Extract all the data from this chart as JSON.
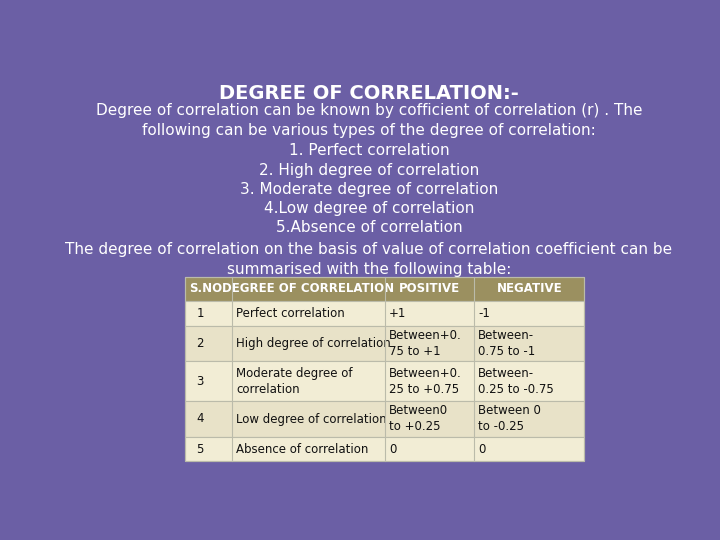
{
  "title": "DEGREE OF CORRELATION:-",
  "intro_lines": [
    "Degree of correlation can be known by cofficient of correlation (r) . The",
    "following can be various types of the degree of correlation:",
    "1. Perfect correlation",
    "2. High degree of correlation",
    "3. Moderate degree of correlation",
    "4.Low degree of correlation",
    "5.Absence of correlation",
    "The degree of correlation on the basis of value of correlation coefficient can be",
    "summarised with the following table:"
  ],
  "bg_color": "#6B5FA5",
  "header_bg": "#9B9060",
  "header_text_color": "#FFFFFF",
  "row_bg_light": "#F2EDD5",
  "row_bg_dark": "#E8E2C8",
  "row_text_color": "#111111",
  "title_color": "#FFFFFF",
  "intro_color": "#FFFFFF",
  "table_headers": [
    "S.NO.",
    "DEGREE OF CORRELATION",
    "POSITIVE",
    "NEGATIVE"
  ],
  "table_rows": [
    [
      "1",
      "Perfect correlation",
      "+1",
      "-1"
    ],
    [
      "2",
      "High degree of correlation",
      "Between+0.\n75 to +1",
      "Between-\n0.75 to -1"
    ],
    [
      "3",
      "Moderate degree of\ncorrelation",
      "Between+0.\n25 to +0.75",
      "Between-\n0.25 to -0.75"
    ],
    [
      "4",
      "Low degree of correlation",
      "Between0\nto +0.25",
      "Between 0\nto -0.25"
    ],
    [
      "5",
      "Absence of correlation",
      "0",
      "0"
    ]
  ]
}
